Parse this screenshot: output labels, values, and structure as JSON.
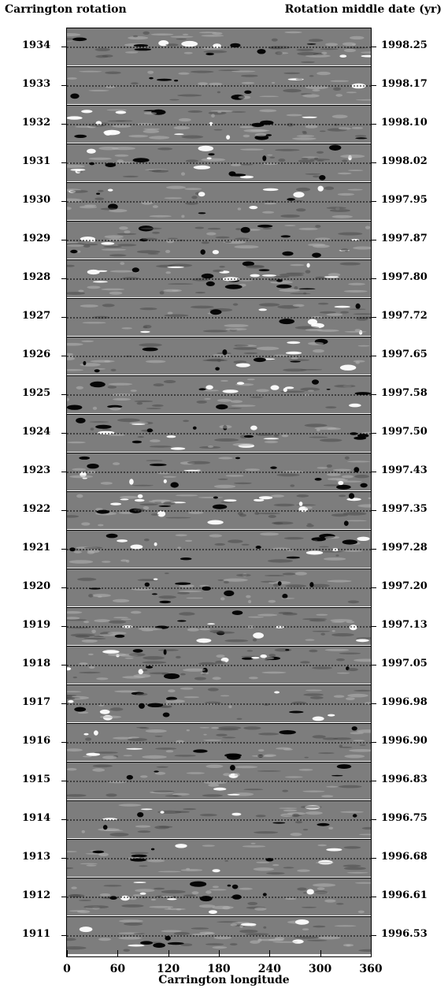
{
  "chart_data": {
    "type": "heatmap",
    "description_header_left": "Carrington rotation",
    "description_header_right": "Rotation middle date (yr)",
    "xlabel": "Carrington longitude",
    "xlim": [
      0,
      360
    ],
    "xticks": [
      "0",
      "60",
      "120",
      "180",
      "240",
      "300",
      "360"
    ],
    "rows": [
      {
        "rotation": "1934",
        "date": "1998.25"
      },
      {
        "rotation": "1933",
        "date": "1998.17"
      },
      {
        "rotation": "1932",
        "date": "1998.10"
      },
      {
        "rotation": "1931",
        "date": "1998.02"
      },
      {
        "rotation": "1930",
        "date": "1997.95"
      },
      {
        "rotation": "1929",
        "date": "1997.87"
      },
      {
        "rotation": "1928",
        "date": "1997.80"
      },
      {
        "rotation": "1927",
        "date": "1997.72"
      },
      {
        "rotation": "1926",
        "date": "1997.65"
      },
      {
        "rotation": "1925",
        "date": "1997.58"
      },
      {
        "rotation": "1924",
        "date": "1997.50"
      },
      {
        "rotation": "1923",
        "date": "1997.43"
      },
      {
        "rotation": "1922",
        "date": "1997.35"
      },
      {
        "rotation": "1921",
        "date": "1997.28"
      },
      {
        "rotation": "1920",
        "date": "1997.20"
      },
      {
        "rotation": "1919",
        "date": "1997.13"
      },
      {
        "rotation": "1918",
        "date": "1997.05"
      },
      {
        "rotation": "1917",
        "date": "1996.98"
      },
      {
        "rotation": "1916",
        "date": "1996.90"
      },
      {
        "rotation": "1915",
        "date": "1996.83"
      },
      {
        "rotation": "1914",
        "date": "1996.75"
      },
      {
        "rotation": "1913",
        "date": "1996.68"
      },
      {
        "rotation": "1912",
        "date": "1996.61"
      },
      {
        "rotation": "1911",
        "date": "1996.53"
      }
    ],
    "colors": {
      "background": "#7d7d7d",
      "positive": "#ffffff",
      "negative": "#000000"
    }
  }
}
